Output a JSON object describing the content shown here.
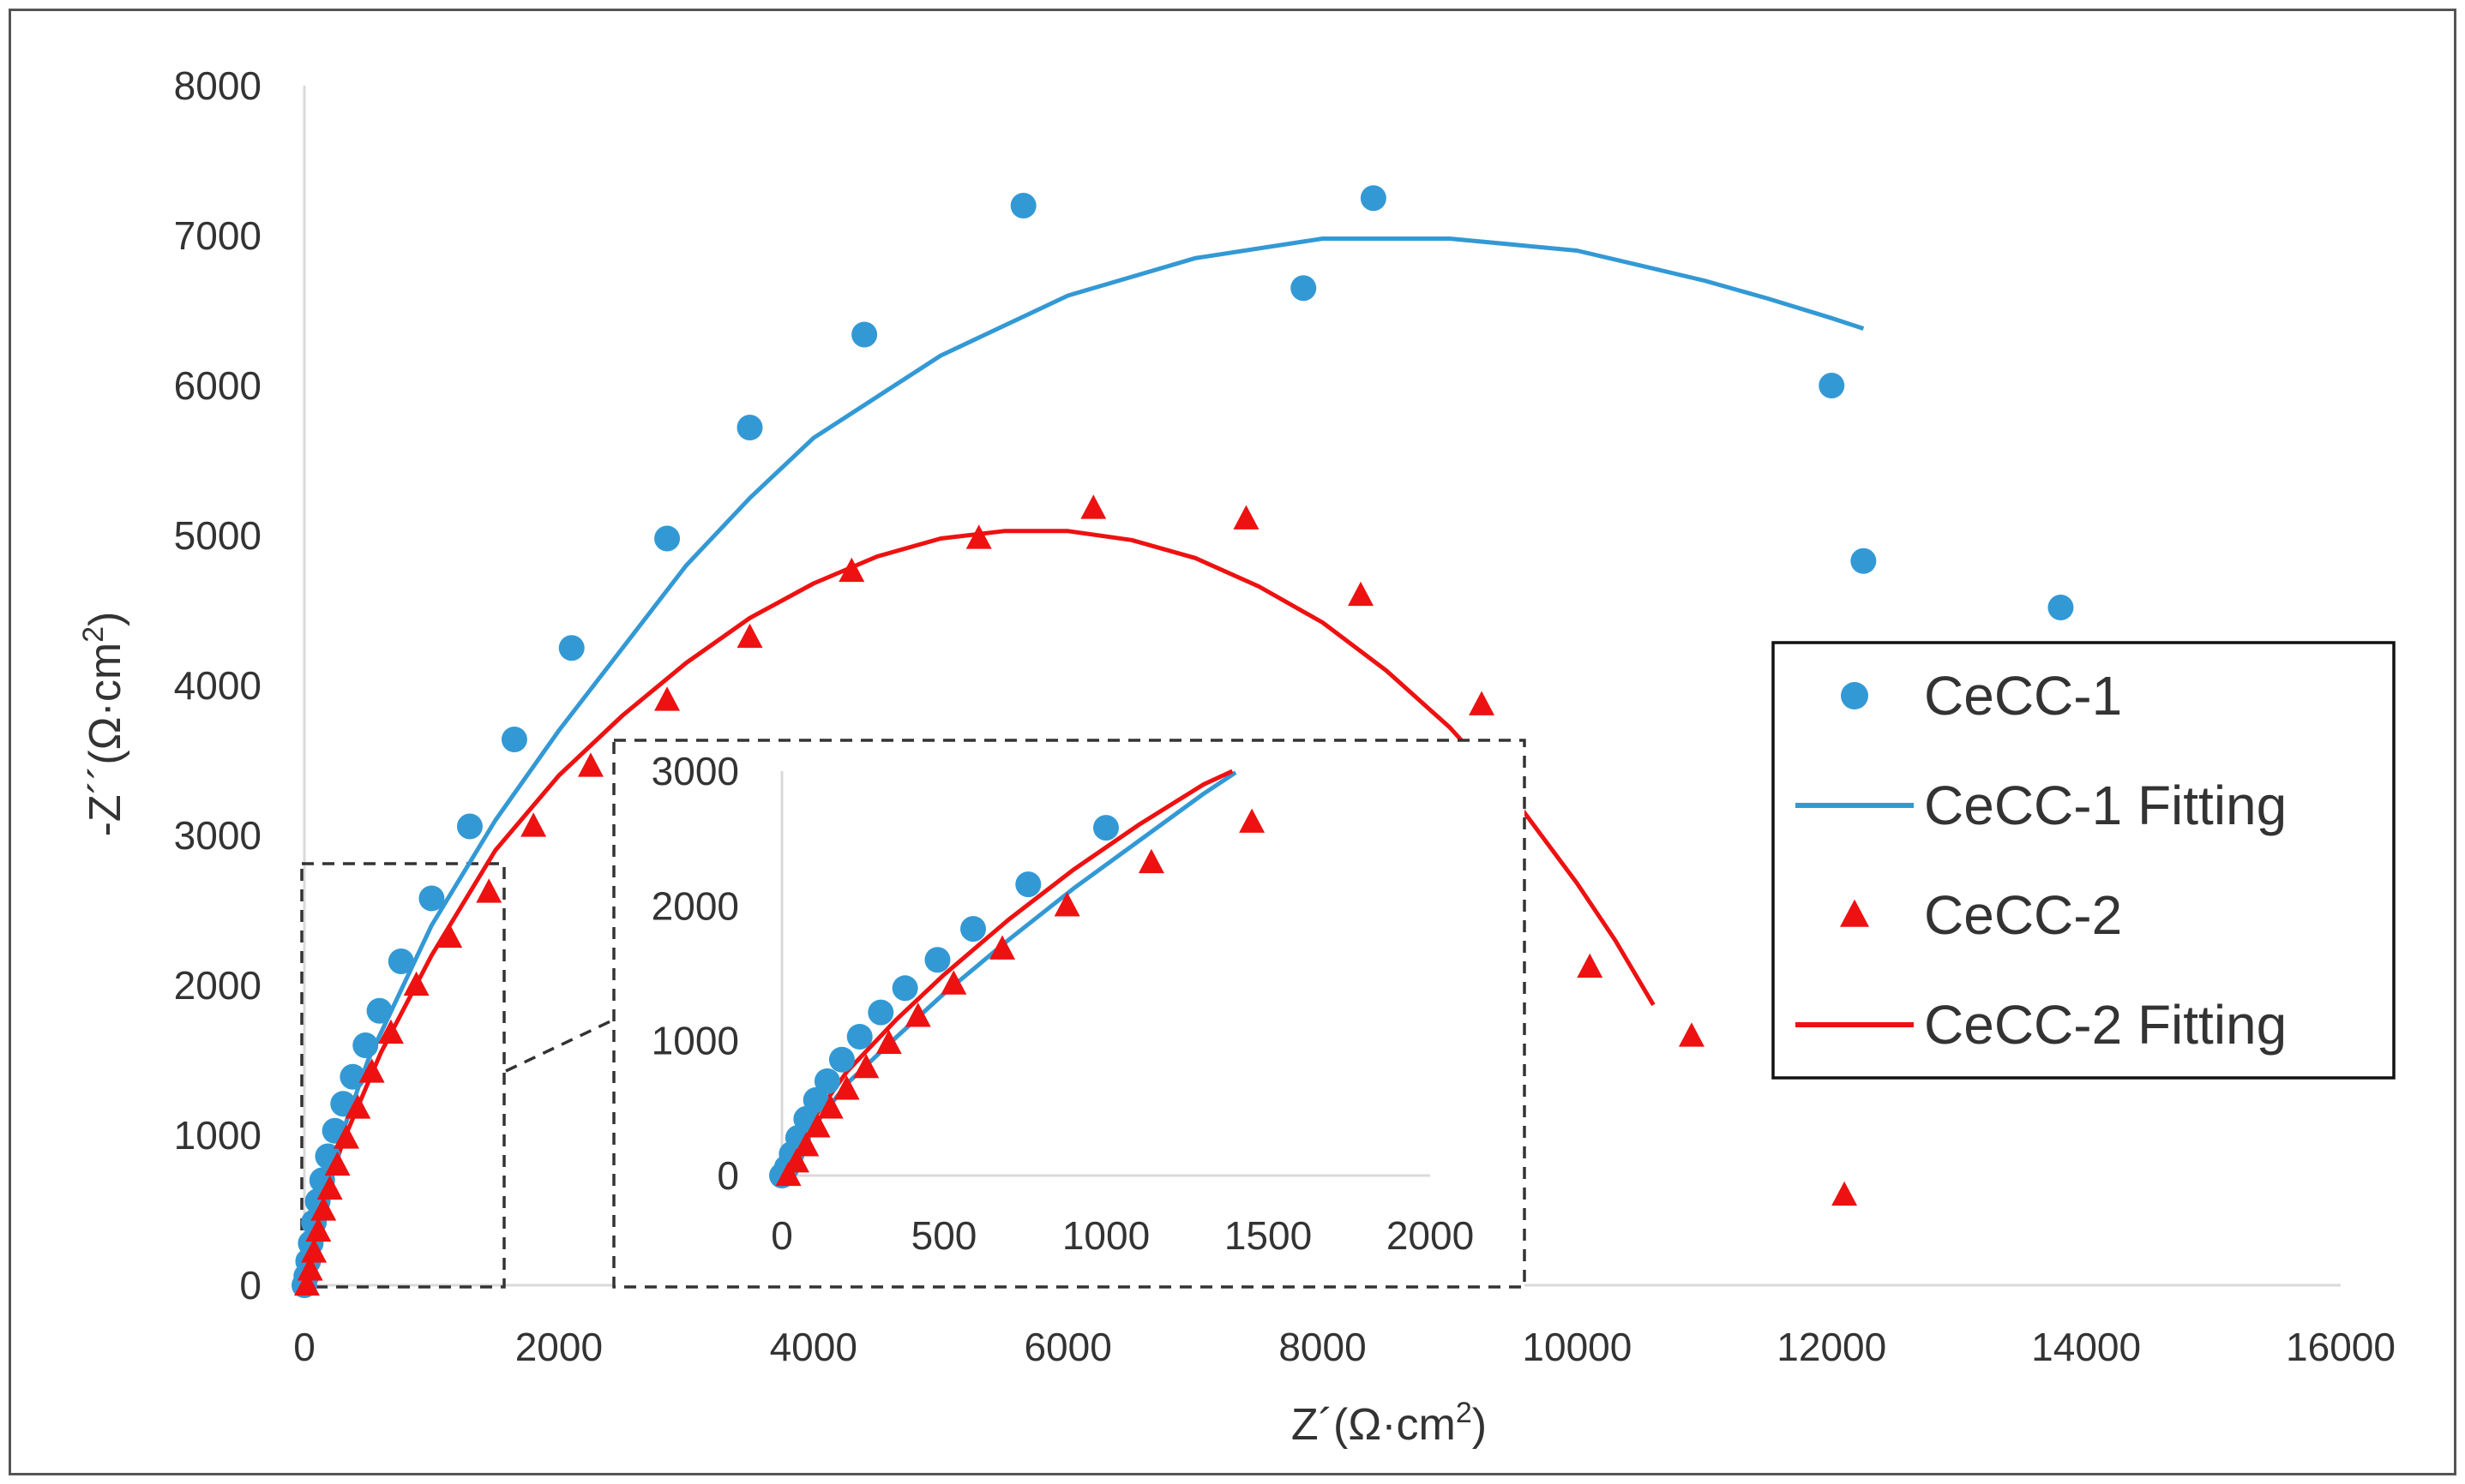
{
  "chart_data": {
    "type": "scatter",
    "title": "",
    "colors": {
      "cecc1": "#3399d5",
      "cecc2": "#ee1111",
      "axis": "#d9d9d9",
      "text": "#333333",
      "dash": "#333333"
    },
    "xlabel": "Z´(Ω·cm²)",
    "ylabel": "-Z´´(Ω·cm²)",
    "xlim": [
      0,
      16000
    ],
    "ylim": [
      0,
      8000
    ],
    "xticks": [
      "0",
      "2000",
      "4000",
      "6000",
      "8000",
      "10000",
      "12000",
      "14000",
      "16000"
    ],
    "yticks": [
      "0",
      "1000",
      "2000",
      "3000",
      "4000",
      "5000",
      "6000",
      "7000",
      "8000"
    ],
    "legend_position": "right",
    "series": [
      {
        "name": "CeCC-1",
        "kind": "points",
        "marker": "circle",
        "x": [
          0,
          15,
          30,
          50,
          75,
          105,
          140,
          185,
          240,
          305,
          380,
          480,
          590,
          760,
          1000,
          1300,
          1650,
          2100,
          2850,
          3500,
          4400,
          5650,
          7850,
          8400,
          12000,
          12250,
          13800
        ],
        "y": [
          0,
          60,
          160,
          280,
          420,
          560,
          700,
          860,
          1030,
          1210,
          1390,
          1600,
          1830,
          2160,
          2580,
          3060,
          3640,
          4250,
          4980,
          5720,
          6340,
          7200,
          6650,
          7250,
          6000,
          4830,
          4520
        ]
      },
      {
        "name": "CeCC-1 Fitting",
        "kind": "line",
        "x": [
          0,
          250,
          500,
          1000,
          1500,
          2000,
          2500,
          3000,
          3500,
          4000,
          5000,
          6000,
          7000,
          8000,
          9000,
          10000,
          11000,
          11500,
          12000,
          12250
        ],
        "y": [
          0,
          900,
          1500,
          2400,
          3100,
          3700,
          4250,
          4800,
          5250,
          5650,
          6200,
          6600,
          6850,
          6980,
          6980,
          6900,
          6700,
          6580,
          6450,
          6380
        ]
      },
      {
        "name": "CeCC-2",
        "kind": "points",
        "marker": "triangle",
        "x": [
          20,
          45,
          75,
          110,
          150,
          200,
          260,
          330,
          420,
          530,
          680,
          880,
          1140,
          1450,
          1800,
          2250,
          2850,
          3500,
          4300,
          5300,
          6200,
          7400,
          8300,
          9250,
          10100,
          10900,
          12100
        ],
        "y": [
          0,
          100,
          220,
          360,
          500,
          640,
          800,
          980,
          1180,
          1420,
          1680,
          2000,
          2320,
          2620,
          3060,
          3460,
          3900,
          4320,
          4760,
          4980,
          5180,
          5110,
          4600,
          3870,
          2120,
          1660,
          600
        ]
      },
      {
        "name": "CeCC-2 Fitting",
        "kind": "line",
        "x": [
          0,
          150,
          300,
          600,
          1000,
          1500,
          2000,
          2500,
          3000,
          3500,
          4000,
          4500,
          5000,
          5500,
          6000,
          6500,
          7000,
          7500,
          8000,
          8500,
          9000,
          9500,
          10000,
          10300,
          10600
        ],
        "y": [
          0,
          550,
          950,
          1550,
          2200,
          2900,
          3400,
          3800,
          4150,
          4450,
          4680,
          4860,
          4980,
          5030,
          5030,
          4970,
          4850,
          4660,
          4420,
          4100,
          3720,
          3250,
          2680,
          2300,
          1870
        ]
      }
    ],
    "inset": {
      "xlim": [
        0,
        2000
      ],
      "ylim": [
        0,
        3000
      ],
      "xticks": [
        "0",
        "500",
        "1000",
        "1500",
        "2000"
      ],
      "yticks": [
        "0",
        "1000",
        "2000",
        "3000"
      ],
      "series": [
        {
          "name": "CeCC-1",
          "kind": "points",
          "marker": "circle",
          "x": [
            0,
            15,
            30,
            50,
            75,
            105,
            140,
            185,
            240,
            305,
            380,
            480,
            590,
            760,
            1000
          ],
          "y": [
            0,
            60,
            160,
            280,
            420,
            560,
            700,
            860,
            1030,
            1210,
            1390,
            1600,
            1830,
            2160,
            2580
          ]
        },
        {
          "name": "CeCC-1 Fitting",
          "kind": "line",
          "x": [
            0,
            100,
            200,
            350,
            500,
            700,
            900,
            1100,
            1300,
            1400
          ],
          "y": [
            0,
            370,
            680,
            1020,
            1350,
            1750,
            2130,
            2480,
            2830,
            2990
          ]
        },
        {
          "name": "CeCC-2",
          "kind": "points",
          "marker": "triangle",
          "x": [
            20,
            45,
            75,
            110,
            150,
            200,
            260,
            330,
            420,
            530,
            680,
            880,
            1140,
            1450
          ],
          "y": [
            0,
            100,
            220,
            360,
            500,
            640,
            800,
            980,
            1180,
            1420,
            1680,
            2000,
            2320,
            2620
          ]
        },
        {
          "name": "CeCC-2 Fitting",
          "kind": "line",
          "x": [
            0,
            100,
            200,
            350,
            500,
            700,
            900,
            1100,
            1300,
            1390
          ],
          "y": [
            0,
            430,
            770,
            1150,
            1490,
            1900,
            2270,
            2600,
            2900,
            3000
          ]
        }
      ]
    }
  }
}
